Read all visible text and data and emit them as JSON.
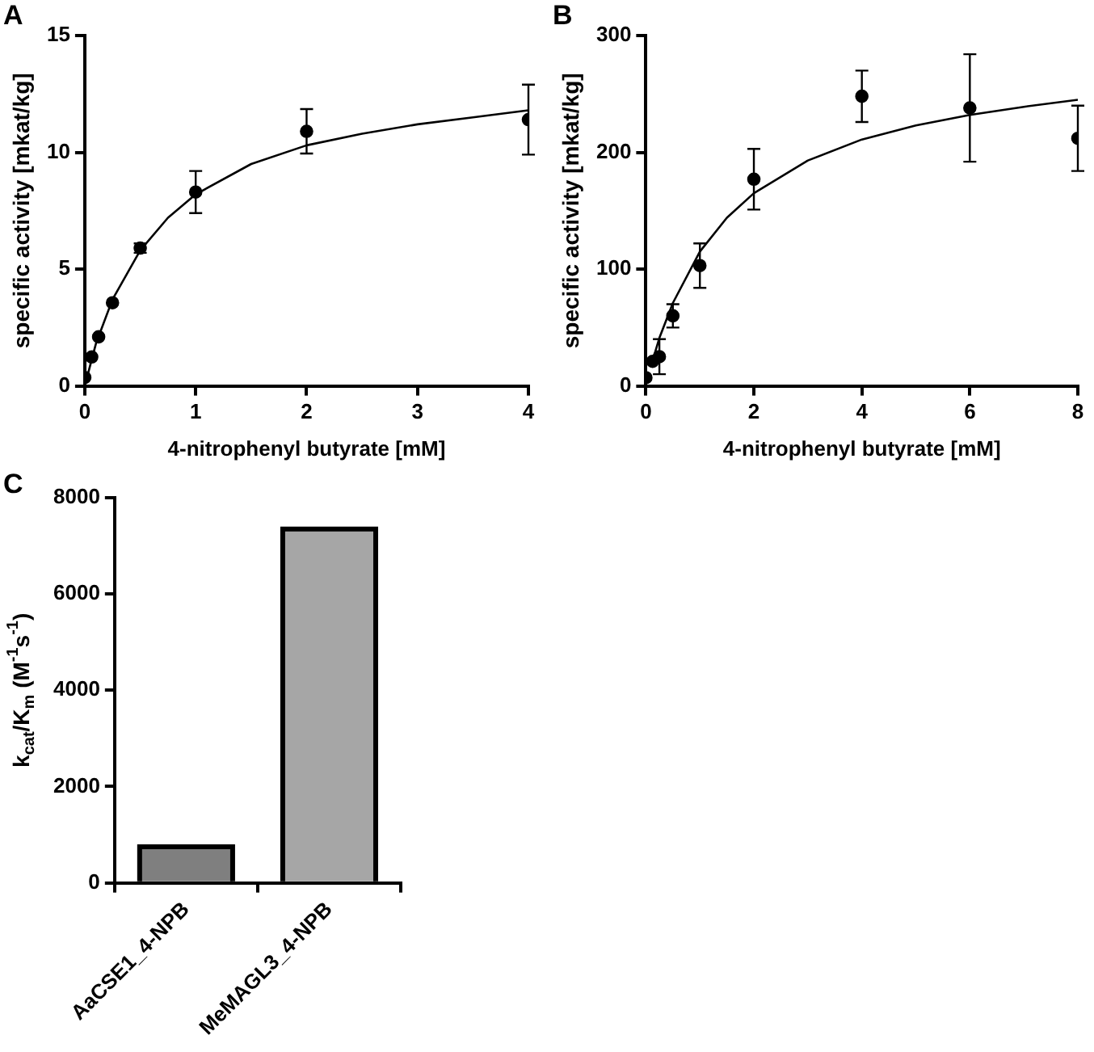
{
  "chart_data": [
    {
      "type": "scatter",
      "annotations": [
        "A"
      ],
      "xlabel": "4-nitrophenyl butyrate [mM]",
      "ylabel": "specific activity [mkat/kg]",
      "xlim": [
        0,
        4
      ],
      "xticks": [
        0,
        1,
        2,
        3,
        4
      ],
      "ylim": [
        0,
        15
      ],
      "yticks": [
        0,
        5,
        10,
        15
      ],
      "grid": false,
      "legend": false,
      "series": [
        {
          "type": "scatter",
          "color": "#000000",
          "marker": "circle",
          "x": [
            0,
            0.0625,
            0.125,
            0.25,
            0.5,
            1,
            2,
            4
          ],
          "values": [
            0.36,
            1.24,
            2.1,
            3.56,
            5.9,
            8.3,
            10.9,
            11.4
          ],
          "errors": [
            null,
            null,
            null,
            null,
            0.2,
            0.9,
            0.95,
            1.5
          ]
        },
        {
          "type": "line",
          "color": "#000000",
          "marker": "none",
          "x": [
            0,
            0.1,
            0.25,
            0.5,
            0.75,
            1,
            1.5,
            2,
            2.5,
            3,
            3.5,
            4
          ],
          "values": [
            0,
            1.8,
            3.7,
            5.8,
            7.2,
            8.2,
            9.5,
            10.3,
            10.8,
            11.2,
            11.5,
            11.8
          ]
        }
      ]
    },
    {
      "type": "scatter",
      "annotations": [
        "B"
      ],
      "xlabel": "4-nitrophenyl butyrate [mM]",
      "ylabel": "specific activity [mkat/kg]",
      "xlim": [
        0,
        8
      ],
      "xticks": [
        0,
        2,
        4,
        6,
        8
      ],
      "ylim": [
        0,
        300
      ],
      "yticks": [
        0,
        100,
        200,
        300
      ],
      "grid": false,
      "legend": false,
      "series": [
        {
          "type": "scatter",
          "color": "#000000",
          "marker": "circle",
          "x": [
            0,
            0.125,
            0.25,
            0.5,
            1,
            2,
            4,
            6,
            8
          ],
          "values": [
            7,
            21,
            25,
            60,
            103,
            177,
            248,
            238,
            212
          ],
          "errors": [
            null,
            null,
            15,
            10,
            19,
            26,
            22,
            46,
            28
          ]
        },
        {
          "type": "line",
          "color": "#000000",
          "marker": "none",
          "x": [
            0.1,
            0.25,
            0.5,
            1,
            1.5,
            2,
            3,
            4,
            5,
            6,
            7,
            8
          ],
          "values": [
            18,
            41,
            71,
            115,
            144,
            165,
            193,
            211,
            223,
            232,
            239,
            245
          ]
        }
      ]
    },
    {
      "type": "bar",
      "annotations": [
        "C"
      ],
      "ylabel": "k$_{cat}$/K$_{m}$ (M$^{-1}$s$^{-1}$)",
      "categories": [
        "AaCSE1_4-NPB",
        "MeMAGL3_4-NPB"
      ],
      "values": [
        750,
        7350
      ],
      "colors": [
        "#7f7f7f",
        "#a6a6a6"
      ],
      "ylim": [
        0,
        8000
      ],
      "yticks": [
        0,
        2000,
        4000,
        6000,
        8000
      ],
      "grid": false,
      "legend": false
    }
  ]
}
